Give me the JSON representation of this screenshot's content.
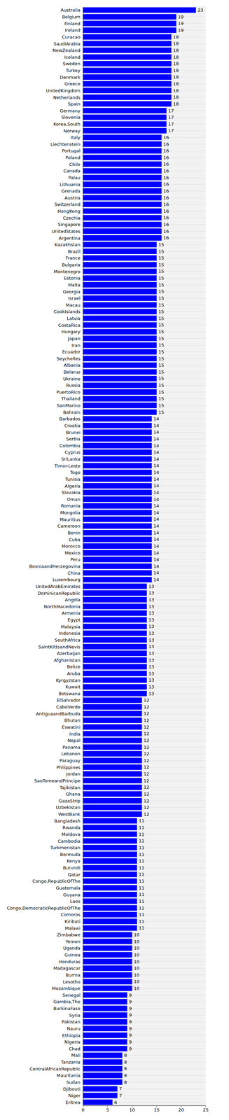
{
  "chart_data": {
    "type": "bar",
    "orientation": "horizontal",
    "categories": [
      "Australia",
      "Belgium",
      "Finland",
      "Ireland",
      "Curacao",
      "SaudiArabia",
      "NewZealand",
      "Iceland",
      "Sweden",
      "Turkey",
      "Denmark",
      "Greece",
      "UnitedKingdom",
      "Netherlands",
      "Spain",
      "Germany",
      "Slovenia",
      "Korea,South",
      "Norway",
      "Italy",
      "Liechtenstein",
      "Portugal",
      "Poland",
      "Chile",
      "Canada",
      "Palau",
      "Lithuania",
      "Grenada",
      "Austria",
      "Switzerland",
      "HongKong",
      "Czechia",
      "Singapore",
      "UnitedStates",
      "Argentina",
      "Kazakhstan",
      "Brazil",
      "France",
      "Bulgaria",
      "Montenegro",
      "Estonia",
      "Malta",
      "Georgia",
      "Israel",
      "Macau",
      "CookIslands",
      "Latvia",
      "CostaRica",
      "Hungary",
      "Japan",
      "Iran",
      "Ecuador",
      "Seychelles",
      "Albania",
      "Belarus",
      "Ukraine",
      "Russia",
      "PuertoRico",
      "Thailand",
      "SanMarino",
      "Bahrain",
      "Barbados",
      "Croatia",
      "Brunei",
      "Serbia",
      "Colombia",
      "Cyprus",
      "SriLanka",
      "Timor-Leste",
      "Togo",
      "Tunisia",
      "Algeria",
      "Slovakia",
      "Oman",
      "Romania",
      "Mongolia",
      "Mauritius",
      "Cameroon",
      "Benin",
      "Cuba",
      "Morocco",
      "Mexico",
      "Peru",
      "BosniaandHerzegovina",
      "China",
      "Luxembourg",
      "UnitedArabEmirates",
      "DominicanRepublic",
      "Angola",
      "NorthMacedonia",
      "Armenia",
      "Egypt",
      "Malaysia",
      "Indonesia",
      "SouthAfrica",
      "SaintKittsandNevis",
      "Azerbaijan",
      "Afghanistan",
      "Belize",
      "Aruba",
      "Kyrgyzstan",
      "Kuwait",
      "Botswana",
      "ElSalvador",
      "CaboVerde",
      "AntiguaandBarbuda",
      "Bhutan",
      "Eswatini",
      "India",
      "Nepal",
      "Panama",
      "Lebanon",
      "Paraguay",
      "Philippines",
      "Jordan",
      "SaoTomeandPrincipe",
      "Tajikistan",
      "Ghana",
      "GazaStrip",
      "Uzbekistan",
      "WestBank",
      "Bangladesh",
      "Rwanda",
      "Moldova",
      "Cambodia",
      "Turkmenistan",
      "Bermuda",
      "Kenya",
      "Burundi",
      "Qatar",
      "Congo,RepublicOfThe",
      "Guatemala",
      "Guyana",
      "Laos",
      "Congo,DemocraticRepublicOfThe",
      "Comoros",
      "Kiribati",
      "Malawi",
      "Zimbabwe",
      "Yemen",
      "Uganda",
      "Guinea",
      "Honduras",
      "Madagascar",
      "Burma",
      "Lesotho",
      "Mozambique",
      "Senegal",
      "Gambia,The",
      "BurkinaFaso",
      "Syria",
      "Pakistan",
      "Nauru",
      "Ethiopia",
      "Nigeria",
      "Chad",
      "Mali",
      "Tanzania",
      "CentralAfricanRepublic",
      "Mauritania",
      "Sudan",
      "Djibouti",
      "Niger",
      "Eritrea"
    ],
    "values": [
      23,
      19,
      19,
      19,
      18,
      18,
      18,
      18,
      18,
      18,
      18,
      18,
      18,
      18,
      18,
      17,
      17,
      17,
      17,
      16,
      16,
      16,
      16,
      16,
      16,
      16,
      16,
      16,
      16,
      16,
      16,
      16,
      16,
      16,
      16,
      15,
      15,
      15,
      15,
      15,
      15,
      15,
      15,
      15,
      15,
      15,
      15,
      15,
      15,
      15,
      15,
      15,
      15,
      15,
      15,
      15,
      15,
      15,
      15,
      15,
      15,
      14,
      14,
      14,
      14,
      14,
      14,
      14,
      14,
      14,
      14,
      14,
      14,
      14,
      14,
      14,
      14,
      14,
      14,
      14,
      14,
      14,
      14,
      14,
      14,
      14,
      13,
      13,
      13,
      13,
      13,
      13,
      13,
      13,
      13,
      13,
      13,
      13,
      13,
      13,
      13,
      13,
      13,
      12,
      12,
      12,
      12,
      12,
      12,
      12,
      12,
      12,
      12,
      12,
      12,
      12,
      12,
      12,
      12,
      12,
      12,
      11,
      11,
      11,
      11,
      11,
      11,
      11,
      11,
      11,
      11,
      11,
      11,
      11,
      11,
      11,
      11,
      11,
      10,
      10,
      10,
      10,
      10,
      10,
      10,
      10,
      10,
      9,
      9,
      9,
      9,
      9,
      9,
      9,
      9,
      9,
      8,
      8,
      8,
      8,
      8,
      7,
      7,
      6
    ],
    "color": "#0000ff",
    "xlim": [
      0,
      25
    ],
    "xticks": [
      0,
      5,
      10,
      15,
      20,
      25
    ],
    "grid": true,
    "data_labels": true
  }
}
